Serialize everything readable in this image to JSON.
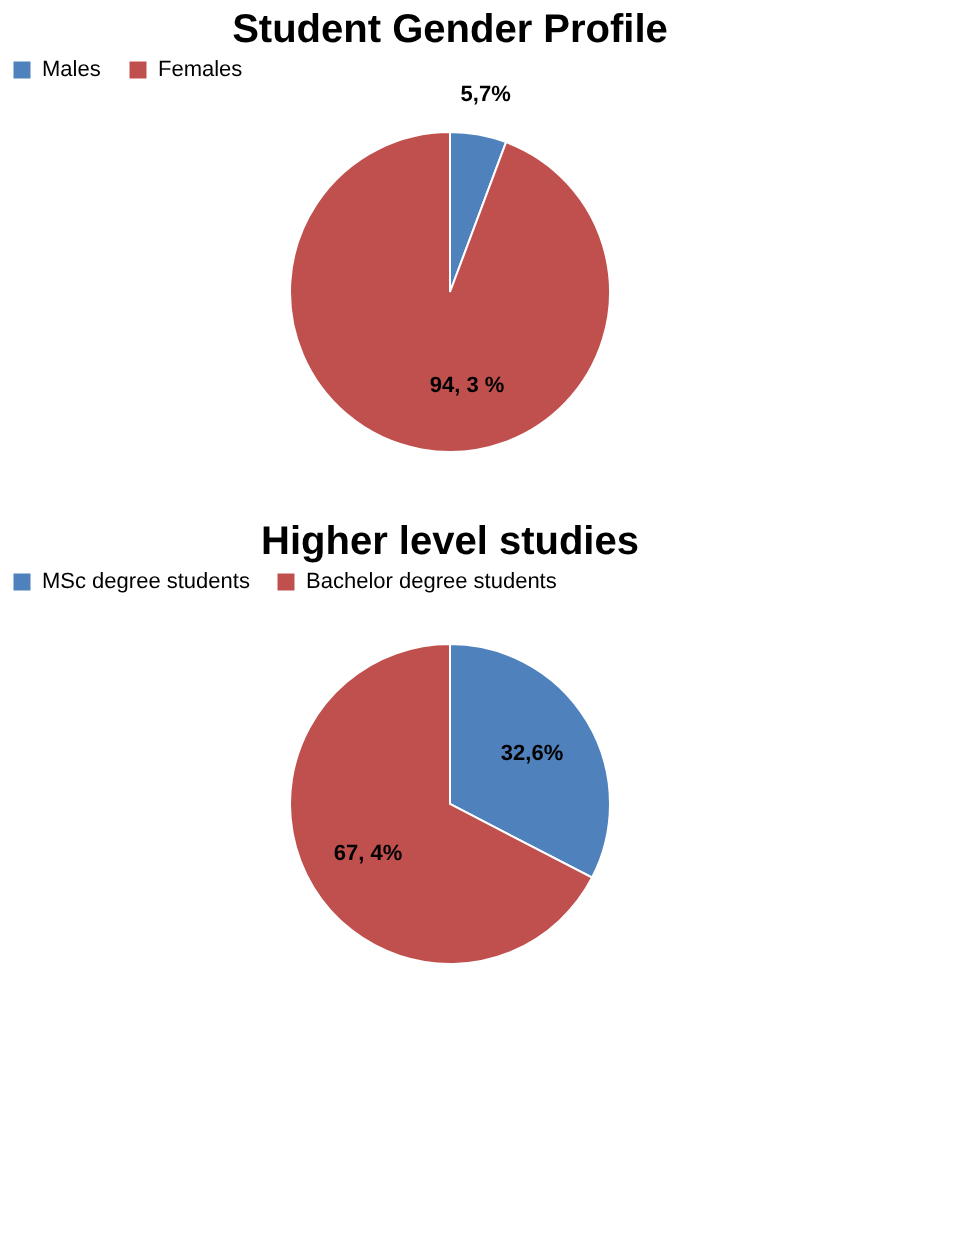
{
  "chart_data": [
    {
      "type": "pie",
      "title": "Student Gender Profile",
      "categories": [
        "Males",
        "Females"
      ],
      "values": [
        5.7,
        94.3
      ],
      "colors": [
        "#4f81bd",
        "#c0504d"
      ],
      "value_labels": [
        "5,7%",
        "94, 3 %"
      ],
      "legend": "top"
    },
    {
      "type": "pie",
      "title": "Higher level studies",
      "categories": [
        "MSc degree students",
        "Bachelor degree students"
      ],
      "values": [
        32.6,
        67.4
      ],
      "colors": [
        "#4f81bd",
        "#c0504d"
      ],
      "value_labels": [
        "32,6%",
        "67, 4%"
      ],
      "legend": "top"
    }
  ]
}
